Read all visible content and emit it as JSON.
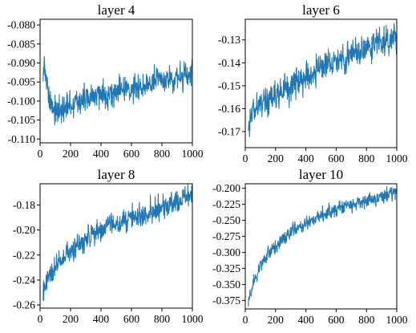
{
  "figure": {
    "line_color": "#1f77b4"
  },
  "chart_data": [
    {
      "type": "line",
      "title": "layer 4",
      "xlim": [
        0,
        1000
      ],
      "ylim": [
        -0.111,
        -0.0785
      ],
      "xticks": [
        0,
        200,
        400,
        600,
        800,
        1000
      ],
      "yticks": [
        -0.08,
        -0.085,
        -0.09,
        -0.095,
        -0.1,
        -0.105,
        -0.11
      ],
      "ytick_labels": [
        "-0.080",
        "-0.085",
        "-0.090",
        "-0.095",
        "-0.100",
        "-0.105",
        "-0.110"
      ],
      "grid": false,
      "series": [
        {
          "x": [
            20,
            30,
            40,
            50,
            60,
            80,
            100,
            120,
            150,
            200,
            250,
            300,
            350,
            400,
            450,
            500,
            550,
            600,
            650,
            700,
            750,
            800,
            850,
            900,
            950,
            1000
          ],
          "y": [
            -0.092,
            -0.09,
            -0.094,
            -0.098,
            -0.1,
            -0.101,
            -0.102,
            -0.103,
            -0.1025,
            -0.101,
            -0.1,
            -0.0995,
            -0.099,
            -0.0985,
            -0.098,
            -0.0975,
            -0.097,
            -0.0965,
            -0.096,
            -0.0955,
            -0.095,
            -0.0945,
            -0.094,
            -0.094,
            -0.0935,
            -0.0935
          ],
          "noise": 0.0022
        }
      ]
    },
    {
      "type": "line",
      "title": "layer 6",
      "xlim": [
        0,
        1000
      ],
      "ylim": [
        -0.177,
        -0.121
      ],
      "xticks": [
        0,
        200,
        400,
        600,
        800,
        1000
      ],
      "yticks": [
        -0.13,
        -0.14,
        -0.15,
        -0.16,
        -0.17
      ],
      "ytick_labels": [
        "-0.13",
        "-0.14",
        "-0.15",
        "-0.16",
        "-0.17"
      ],
      "grid": false,
      "series": [
        {
          "x": [
            20,
            40,
            60,
            100,
            150,
            200,
            250,
            300,
            350,
            400,
            450,
            500,
            550,
            600,
            650,
            700,
            750,
            800,
            850,
            900,
            950,
            1000
          ],
          "y": [
            -0.165,
            -0.162,
            -0.16,
            -0.158,
            -0.156,
            -0.154,
            -0.152,
            -0.15,
            -0.148,
            -0.146,
            -0.144,
            -0.142,
            -0.141,
            -0.139,
            -0.138,
            -0.136,
            -0.135,
            -0.134,
            -0.132,
            -0.131,
            -0.13,
            -0.129
          ],
          "noise": 0.0038
        }
      ]
    },
    {
      "type": "line",
      "title": "layer 8",
      "xlim": [
        0,
        1000
      ],
      "ylim": [
        -0.2625,
        -0.163
      ],
      "xticks": [
        0,
        200,
        400,
        600,
        800,
        1000
      ],
      "yticks": [
        -0.18,
        -0.2,
        -0.22,
        -0.24,
        -0.26
      ],
      "ytick_labels": [
        "-0.18",
        "-0.20",
        "-0.22",
        "-0.24",
        "-0.26"
      ],
      "grid": false,
      "series": [
        {
          "x": [
            20,
            40,
            60,
            100,
            150,
            200,
            250,
            300,
            350,
            400,
            450,
            500,
            550,
            600,
            650,
            700,
            750,
            800,
            850,
            900,
            950,
            1000
          ],
          "y": [
            -0.25,
            -0.242,
            -0.236,
            -0.23,
            -0.224,
            -0.218,
            -0.213,
            -0.208,
            -0.204,
            -0.2,
            -0.197,
            -0.195,
            -0.193,
            -0.19,
            -0.188,
            -0.185,
            -0.183,
            -0.181,
            -0.179,
            -0.177,
            -0.175,
            -0.173
          ],
          "noise": 0.0055
        }
      ]
    },
    {
      "type": "line",
      "title": "layer 10",
      "xlim": [
        0,
        1000
      ],
      "ylim": [
        -0.388,
        -0.193
      ],
      "xticks": [
        0,
        200,
        400,
        600,
        800,
        1000
      ],
      "yticks": [
        -0.2,
        -0.225,
        -0.25,
        -0.275,
        -0.3,
        -0.325,
        -0.35,
        -0.375
      ],
      "ytick_labels": [
        "-0.200",
        "-0.225",
        "-0.250",
        "-0.275",
        "-0.300",
        "-0.325",
        "-0.350",
        "-0.375"
      ],
      "grid": false,
      "series": [
        {
          "x": [
            20,
            40,
            60,
            80,
            100,
            150,
            200,
            250,
            300,
            350,
            400,
            450,
            500,
            550,
            600,
            650,
            700,
            750,
            800,
            850,
            900,
            950,
            1000
          ],
          "y": [
            -0.378,
            -0.36,
            -0.345,
            -0.333,
            -0.322,
            -0.303,
            -0.289,
            -0.278,
            -0.268,
            -0.261,
            -0.254,
            -0.248,
            -0.243,
            -0.238,
            -0.234,
            -0.23,
            -0.226,
            -0.222,
            -0.219,
            -0.216,
            -0.213,
            -0.21,
            -0.207
          ],
          "noise": 0.0065
        }
      ]
    }
  ]
}
